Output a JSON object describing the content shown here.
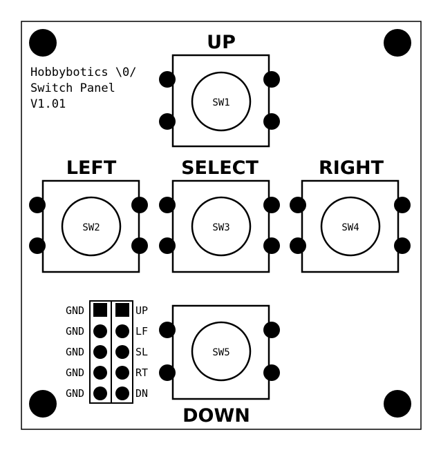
{
  "board": {
    "title_lines": [
      "Hobbybotics \\0/",
      "Switch Panel",
      "V1.01"
    ]
  },
  "switches": [
    {
      "ref": "SW1",
      "label": "UP"
    },
    {
      "ref": "SW2",
      "label": "LEFT"
    },
    {
      "ref": "SW3",
      "label": "SELECT"
    },
    {
      "ref": "SW4",
      "label": "RIGHT"
    },
    {
      "ref": "SW5",
      "label": "DOWN"
    }
  ],
  "header": {
    "left_labels": [
      "GND",
      "GND",
      "GND",
      "GND",
      "GND"
    ],
    "right_labels": [
      "UP",
      "LF",
      "SL",
      "RT",
      "DN"
    ]
  }
}
